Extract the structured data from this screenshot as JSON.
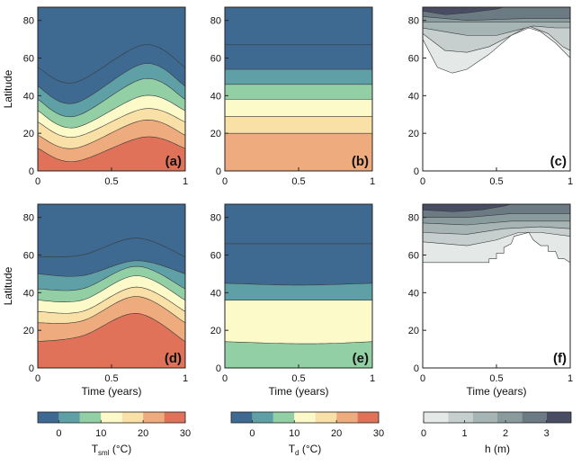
{
  "colorbars": [
    {
      "label_main": "T",
      "label_sub": "sml",
      "label_unit": " (°C)",
      "ticks": [
        "0",
        "10",
        "20",
        "30"
      ],
      "range": [
        -5,
        30
      ],
      "levels": [
        -5,
        0,
        5,
        10,
        15,
        20,
        25,
        30
      ],
      "colors": [
        "#3e6a92",
        "#5f9fa6",
        "#93cfa4",
        "#fdfac9",
        "#f9e0a6",
        "#eeab7e",
        "#df7259",
        "#c6474e"
      ]
    },
    {
      "label_main": "T",
      "label_sub": "d",
      "label_unit": " (°C)",
      "ticks": [
        "0",
        "10",
        "20",
        "30"
      ],
      "range": [
        -5,
        30
      ],
      "levels": [
        -5,
        0,
        5,
        10,
        15,
        20,
        25,
        30
      ],
      "colors": [
        "#3e6a92",
        "#5f9fa6",
        "#93cfa4",
        "#fdfac9",
        "#f9e0a6",
        "#eeab7e",
        "#df7259",
        "#c6474e"
      ]
    },
    {
      "label_main": "h (m)",
      "label_sub": "",
      "label_unit": "",
      "ticks": [
        "0",
        "1",
        "2",
        "3"
      ],
      "range": [
        0,
        3.6
      ],
      "levels": [
        0,
        0.6,
        1.2,
        1.8,
        2.4,
        3.0,
        3.6
      ],
      "colors": [
        "#e4e8e7",
        "#c6cfce",
        "#a7b4b4",
        "#8a9b9d",
        "#6c7a83",
        "#484d64"
      ]
    }
  ],
  "axes": {
    "ylabel": "Latitude",
    "xlabel": "Time (years)",
    "xticks": [
      "0",
      "0.5",
      "1"
    ],
    "yticks": [
      "0",
      "20",
      "40",
      "60",
      "80"
    ]
  },
  "chart_data": [
    {
      "panel": "(a)",
      "type": "contour",
      "variable": "Tsml",
      "x": [
        0,
        1
      ],
      "y": [
        0,
        87
      ],
      "colorbar": 0,
      "bands": [
        {
          "value": 27.5,
          "upper": [
            [
              0,
              12
            ],
            [
              0.25,
              5
            ],
            [
              0.72,
              18
            ],
            [
              1,
              12
            ]
          ]
        },
        {
          "value": 22.5,
          "upper": [
            [
              0,
              19
            ],
            [
              0.25,
              12
            ],
            [
              0.72,
              27
            ],
            [
              1,
              19
            ]
          ]
        },
        {
          "value": 17.5,
          "upper": [
            [
              0,
              26
            ],
            [
              0.25,
              18
            ],
            [
              0.72,
              33
            ],
            [
              1,
              26
            ]
          ]
        },
        {
          "value": 12.5,
          "upper": [
            [
              0,
              32
            ],
            [
              0.25,
              23
            ],
            [
              0.72,
              40
            ],
            [
              1,
              32
            ]
          ]
        },
        {
          "value": 7.5,
          "upper": [
            [
              0,
              38
            ],
            [
              0.25,
              29
            ],
            [
              0.72,
              49
            ],
            [
              1,
              38
            ]
          ]
        },
        {
          "value": 2.5,
          "upper": [
            [
              0,
              45
            ],
            [
              0.25,
              36
            ],
            [
              0.72,
              57
            ],
            [
              1,
              45
            ]
          ]
        },
        {
          "value": -2.5,
          "upper": [
            [
              0,
              55
            ],
            [
              0.25,
              47
            ],
            [
              0.72,
              67
            ],
            [
              1,
              55
            ]
          ]
        }
      ],
      "top_value": -5
    },
    {
      "panel": "(b)",
      "type": "contour",
      "variable": "Td",
      "x": [
        0,
        1
      ],
      "y": [
        0,
        87
      ],
      "colorbar": 1,
      "bands": [
        {
          "value": 22.5,
          "upper": [
            [
              0,
              20
            ],
            [
              1,
              20
            ]
          ]
        },
        {
          "value": 17.5,
          "upper": [
            [
              0,
              29
            ],
            [
              1,
              29
            ]
          ]
        },
        {
          "value": 12.5,
          "upper": [
            [
              0,
              38
            ],
            [
              1,
              38
            ]
          ]
        },
        {
          "value": 7.5,
          "upper": [
            [
              0,
              46
            ],
            [
              1,
              46
            ]
          ]
        },
        {
          "value": 2.5,
          "upper": [
            [
              0,
              54
            ],
            [
              1,
              54
            ]
          ]
        },
        {
          "value": -2.5,
          "upper": [
            [
              0,
              67
            ],
            [
              1,
              67
            ]
          ]
        }
      ],
      "top_value": -5
    },
    {
      "panel": "(c)",
      "type": "contour",
      "variable": "h",
      "x": [
        0,
        1
      ],
      "y": [
        0,
        87
      ],
      "colorbar": 2,
      "bands": [
        {
          "value": 0.3,
          "lower": [
            [
              0,
              87
            ],
            [
              1,
              87
            ]
          ],
          "upper": [
            [
              0,
              87
            ],
            [
              1,
              87
            ]
          ],
          "shape": [
            [
              0,
              70
            ],
            [
              0.1,
              55
            ],
            [
              0.2,
              52
            ],
            [
              0.3,
              54
            ],
            [
              0.45,
              62
            ],
            [
              0.6,
              72
            ],
            [
              0.72,
              76
            ],
            [
              0.8,
              74
            ],
            [
              0.9,
              68
            ],
            [
              1,
              60
            ],
            [
              1,
              87
            ],
            [
              0,
              87
            ]
          ]
        },
        {
          "value": 0.9,
          "shape": [
            [
              0,
              73
            ],
            [
              0.15,
              64
            ],
            [
              0.3,
              63
            ],
            [
              0.45,
              66
            ],
            [
              0.6,
              72
            ],
            [
              0.72,
              77
            ],
            [
              0.85,
              73
            ],
            [
              0.95,
              66
            ],
            [
              1,
              64
            ],
            [
              1,
              87
            ],
            [
              0,
              87
            ]
          ]
        },
        {
          "value": 1.5,
          "shape": [
            [
              0,
              76
            ],
            [
              0.3,
              72
            ],
            [
              0.5,
              72
            ],
            [
              0.65,
              75
            ],
            [
              0.75,
              77
            ],
            [
              0.9,
              76
            ],
            [
              1,
              76
            ],
            [
              1,
              87
            ],
            [
              0,
              87
            ]
          ]
        },
        {
          "value": 2.1,
          "shape": [
            [
              0,
              79
            ],
            [
              1,
              79
            ],
            [
              1,
              87
            ],
            [
              0,
              87
            ]
          ]
        },
        {
          "value": 2.7,
          "shape": [
            [
              0,
              82
            ],
            [
              0.3,
              80
            ],
            [
              0.7,
              81
            ],
            [
              1,
              81
            ],
            [
              1,
              87
            ],
            [
              0,
              87
            ]
          ]
        },
        {
          "value": 3.3,
          "shape": [
            [
              0,
              85
            ],
            [
              0.15,
              83
            ],
            [
              0.3,
              84
            ],
            [
              0.5,
              86
            ],
            [
              0.55,
              87
            ],
            [
              0,
              87
            ]
          ]
        }
      ],
      "base_value": "white"
    },
    {
      "panel": "(d)",
      "type": "contour",
      "variable": "Tsml",
      "x": [
        0,
        1
      ],
      "y": [
        0,
        87
      ],
      "colorbar": 0,
      "bands": [
        {
          "value": 27.5,
          "upper": [
            [
              0,
              14
            ],
            [
              0.3,
              17
            ],
            [
              0.67,
              29
            ],
            [
              1,
              14
            ]
          ]
        },
        {
          "value": 22.5,
          "upper": [
            [
              0,
              24
            ],
            [
              0.3,
              25
            ],
            [
              0.67,
              38
            ],
            [
              1,
              24
            ]
          ]
        },
        {
          "value": 17.5,
          "upper": [
            [
              0,
              30
            ],
            [
              0.3,
              30
            ],
            [
              0.67,
              43
            ],
            [
              1,
              30
            ]
          ]
        },
        {
          "value": 12.5,
          "upper": [
            [
              0,
              36
            ],
            [
              0.3,
              36
            ],
            [
              0.67,
              49
            ],
            [
              1,
              36
            ]
          ]
        },
        {
          "value": 7.5,
          "upper": [
            [
              0,
              42
            ],
            [
              0.3,
              42
            ],
            [
              0.67,
              54
            ],
            [
              1,
              42
            ]
          ]
        },
        {
          "value": 2.5,
          "upper": [
            [
              0,
              50
            ],
            [
              0.3,
              49
            ],
            [
              0.67,
              57
            ],
            [
              1,
              50
            ]
          ]
        },
        {
          "value": -2.5,
          "upper": [
            [
              0,
              59
            ],
            [
              0.3,
              60
            ],
            [
              0.67,
              69
            ],
            [
              1,
              59
            ]
          ]
        }
      ],
      "top_value": -5
    },
    {
      "panel": "(e)",
      "type": "contour",
      "variable": "Td",
      "x": [
        0,
        1
      ],
      "y": [
        0,
        87
      ],
      "colorbar": 1,
      "bands": [
        {
          "value": 7.5,
          "upper": [
            [
              0,
              14
            ],
            [
              0.4,
              13
            ],
            [
              0.7,
              13
            ],
            [
              1,
              14
            ]
          ]
        },
        {
          "value": 12.5,
          "upper": [
            [
              0,
              36
            ],
            [
              1,
              36
            ]
          ]
        },
        {
          "value": 2.5,
          "upper": [
            [
              0,
              45
            ],
            [
              0.5,
              44
            ],
            [
              1,
              45
            ]
          ]
        },
        {
          "value": -2.5,
          "upper": [
            [
              0,
              66
            ],
            [
              0.5,
              66
            ],
            [
              1,
              66
            ]
          ]
        }
      ],
      "top_value": -5
    },
    {
      "panel": "(f)",
      "type": "contour",
      "variable": "h",
      "x": [
        0,
        1
      ],
      "y": [
        0,
        87
      ],
      "colorbar": 2,
      "bands": [
        {
          "value": 0.3,
          "shape": [
            [
              0,
              56
            ],
            [
              0.45,
              56
            ],
            [
              0.45,
              58
            ],
            [
              0.5,
              58
            ],
            [
              0.5,
              61
            ],
            [
              0.55,
              61
            ],
            [
              0.55,
              64
            ],
            [
              0.6,
              66
            ],
            [
              0.62,
              70
            ],
            [
              0.72,
              72
            ],
            [
              0.75,
              68
            ],
            [
              0.8,
              65
            ],
            [
              0.85,
              65
            ],
            [
              0.85,
              62
            ],
            [
              0.9,
              62
            ],
            [
              0.92,
              58
            ],
            [
              0.96,
              58
            ],
            [
              1,
              56
            ],
            [
              1,
              87
            ],
            [
              0,
              87
            ]
          ]
        },
        {
          "value": 0.9,
          "shape": [
            [
              0,
              67
            ],
            [
              0.3,
              65
            ],
            [
              0.5,
              68
            ],
            [
              0.65,
              72
            ],
            [
              0.8,
              72
            ],
            [
              1,
              70
            ],
            [
              1,
              87
            ],
            [
              0,
              87
            ]
          ]
        },
        {
          "value": 1.5,
          "shape": [
            [
              0,
              72
            ],
            [
              0.3,
              71
            ],
            [
              0.55,
              74
            ],
            [
              0.8,
              75
            ],
            [
              1,
              74
            ],
            [
              1,
              87
            ],
            [
              0,
              87
            ]
          ]
        },
        {
          "value": 2.1,
          "shape": [
            [
              0,
              77
            ],
            [
              0.3,
              76
            ],
            [
              0.6,
              78
            ],
            [
              1,
              78
            ],
            [
              1,
              87
            ],
            [
              0,
              87
            ]
          ]
        },
        {
          "value": 2.7,
          "shape": [
            [
              0,
              80
            ],
            [
              0.3,
              80
            ],
            [
              0.6,
              82
            ],
            [
              1,
              82
            ],
            [
              1,
              87
            ],
            [
              0,
              87
            ]
          ]
        },
        {
          "value": 3.3,
          "shape": [
            [
              0,
              84
            ],
            [
              0.2,
              83
            ],
            [
              0.4,
              84
            ],
            [
              0.55,
              86
            ],
            [
              0.6,
              87
            ],
            [
              0,
              87
            ]
          ]
        }
      ],
      "base_value": "white"
    }
  ]
}
